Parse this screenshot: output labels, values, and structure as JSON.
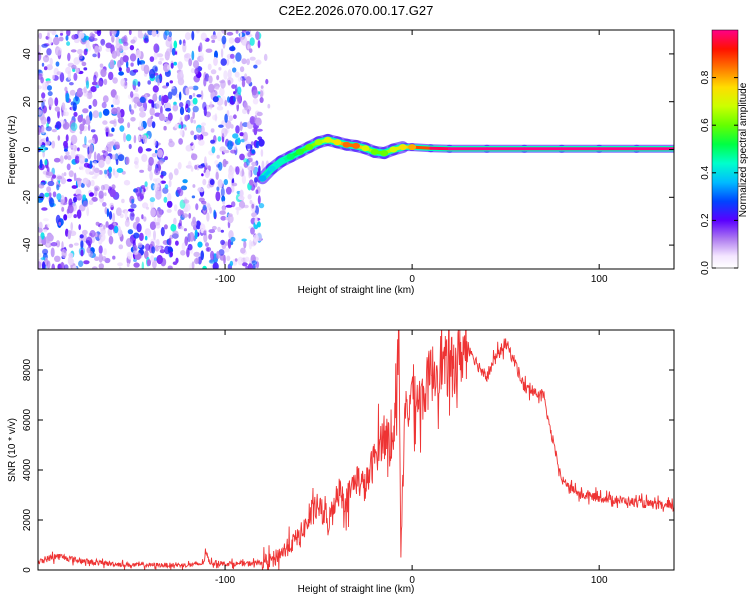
{
  "title": "C2E2.2026.070.00.17.G27",
  "chart_data": [
    {
      "type": "heatmap",
      "name": "spectrogram",
      "xlabel": "Height of straight line (km)",
      "ylabel": "Frequency (Hz)",
      "xlim": [
        -200,
        140
      ],
      "ylim": [
        -50,
        50
      ],
      "xticks": [
        -100,
        0,
        100
      ],
      "yticks": [
        -40,
        -20,
        0,
        20,
        40
      ],
      "colorbar": {
        "label": "Normalized spectral amplitude",
        "range": [
          0,
          1
        ],
        "ticks": [
          0.0,
          0.2,
          0.4,
          0.6,
          0.8
        ],
        "tick_labels": [
          "0.0",
          "0.2",
          "0.4",
          "0.6",
          "0.8"
        ]
      },
      "noise_region": {
        "x": [
          -200,
          -80
        ],
        "amplitude": [
          0.05,
          0.35
        ]
      },
      "signal_track": [
        {
          "x": -80,
          "freq": -12,
          "amp": 0.35
        },
        {
          "x": -75,
          "freq": -8,
          "amp": 0.4
        },
        {
          "x": -70,
          "freq": -5,
          "amp": 0.45
        },
        {
          "x": -65,
          "freq": -3,
          "amp": 0.5
        },
        {
          "x": -60,
          "freq": -1,
          "amp": 0.55
        },
        {
          "x": -55,
          "freq": 1,
          "amp": 0.6
        },
        {
          "x": -50,
          "freq": 3,
          "amp": 0.65
        },
        {
          "x": -45,
          "freq": 4,
          "amp": 0.7
        },
        {
          "x": -40,
          "freq": 3,
          "amp": 0.75
        },
        {
          "x": -35,
          "freq": 2,
          "amp": 0.85
        },
        {
          "x": -30,
          "freq": 1.5,
          "amp": 0.85
        },
        {
          "x": -25,
          "freq": 0.5,
          "amp": 0.7
        },
        {
          "x": -20,
          "freq": -1,
          "amp": 0.6
        },
        {
          "x": -15,
          "freq": -1.5,
          "amp": 0.6
        },
        {
          "x": -10,
          "freq": 0,
          "amp": 0.7
        },
        {
          "x": -5,
          "freq": 1,
          "amp": 0.75
        },
        {
          "x": 0,
          "freq": 1,
          "amp": 0.8
        },
        {
          "x": 10,
          "freq": 0.5,
          "amp": 0.95
        },
        {
          "x": 20,
          "freq": 0.3,
          "amp": 1.0
        },
        {
          "x": 40,
          "freq": 0.3,
          "amp": 1.0
        },
        {
          "x": 60,
          "freq": 0.3,
          "amp": 1.0
        },
        {
          "x": 80,
          "freq": 0.3,
          "amp": 1.0
        },
        {
          "x": 100,
          "freq": 0.3,
          "amp": 1.0
        },
        {
          "x": 120,
          "freq": 0.3,
          "amp": 1.0
        },
        {
          "x": 140,
          "freq": 0.3,
          "amp": 1.0
        }
      ]
    },
    {
      "type": "line",
      "name": "snr",
      "xlabel": "Height of straight line (km)",
      "ylabel": "SNR (10 * v/v)",
      "xlim": [
        -200,
        140
      ],
      "ylim": [
        0,
        9600
      ],
      "xticks": [
        -100,
        0,
        100
      ],
      "yticks": [
        0,
        2000,
        4000,
        6000,
        8000
      ],
      "color": "#ee3333",
      "series": [
        {
          "name": "SNR",
          "x": [
            -200,
            -195,
            -190,
            -185,
            -180,
            -170,
            -160,
            -150,
            -140,
            -130,
            -120,
            -112,
            -110,
            -108,
            -100,
            -90,
            -80,
            -75,
            -70,
            -65,
            -60,
            -55,
            -50,
            -45,
            -40,
            -35,
            -30,
            -25,
            -20,
            -15,
            -10,
            -7,
            -6,
            -4,
            -2,
            0,
            5,
            10,
            15,
            20,
            25,
            30,
            35,
            40,
            45,
            50,
            55,
            60,
            65,
            70,
            75,
            80,
            85,
            90,
            100,
            110,
            120,
            130,
            140
          ],
          "y": [
            300,
            450,
            550,
            500,
            400,
            300,
            250,
            200,
            200,
            200,
            200,
            250,
            650,
            300,
            250,
            250,
            300,
            400,
            700,
            1000,
            1400,
            2000,
            2600,
            1800,
            3200,
            2800,
            3700,
            3300,
            4500,
            5500,
            5000,
            9600,
            600,
            5800,
            6500,
            7200,
            6800,
            7800,
            8300,
            8000,
            8500,
            9000,
            8200,
            7800,
            8500,
            9100,
            8300,
            7300,
            7100,
            7000,
            5200,
            3600,
            3300,
            3000,
            2900,
            2800,
            2700,
            2600,
            2500
          ]
        }
      ]
    }
  ]
}
